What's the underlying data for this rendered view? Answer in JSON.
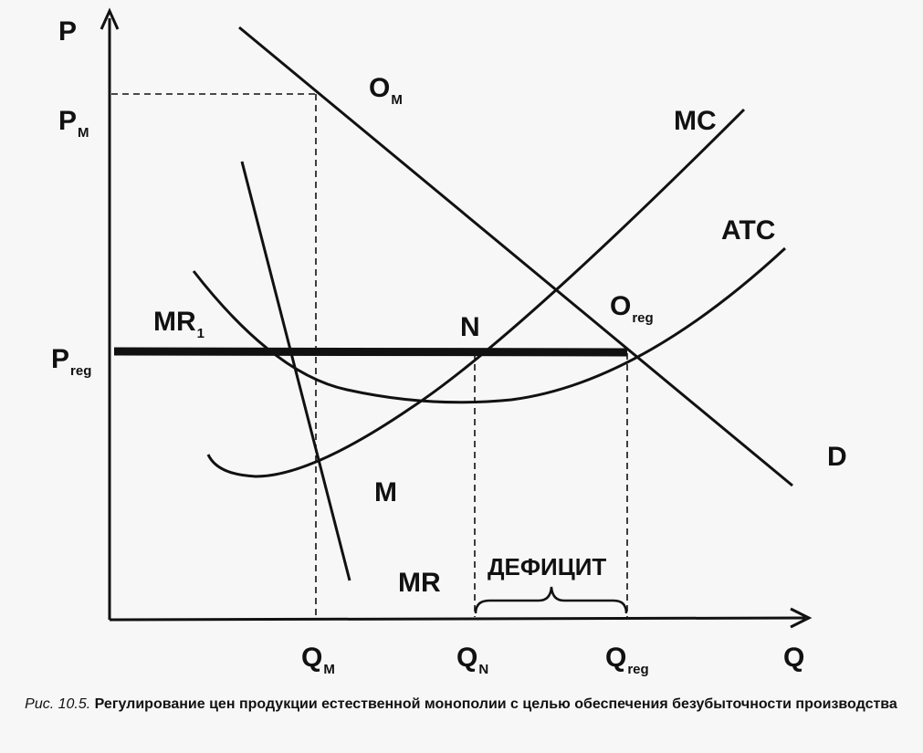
{
  "axes": {
    "y": "P",
    "x": "Q"
  },
  "price_labels": {
    "pm": {
      "main": "P",
      "sub": "M"
    },
    "preg": {
      "main": "P",
      "sub": "reg"
    }
  },
  "quantity_labels": {
    "qm": {
      "main": "Q",
      "sub": "M"
    },
    "qn": {
      "main": "Q",
      "sub": "N"
    },
    "qreg": {
      "main": "Q",
      "sub": "reg"
    }
  },
  "curves": {
    "mc": "MC",
    "atc": "ATC",
    "d": "D",
    "mr": "MR",
    "mr1": {
      "main": "MR",
      "sub": "1"
    }
  },
  "points": {
    "om": {
      "main": "O",
      "sub": "M"
    },
    "oreg": {
      "main": "O",
      "sub": "reg"
    },
    "n": "N",
    "m": "M"
  },
  "deficit": "ДЕФИЦИТ",
  "caption": {
    "number": "Рис. 10.5.",
    "text": "Регулирование цен продукции естественной монополии с целью обеспечения безубыточности производства"
  }
}
